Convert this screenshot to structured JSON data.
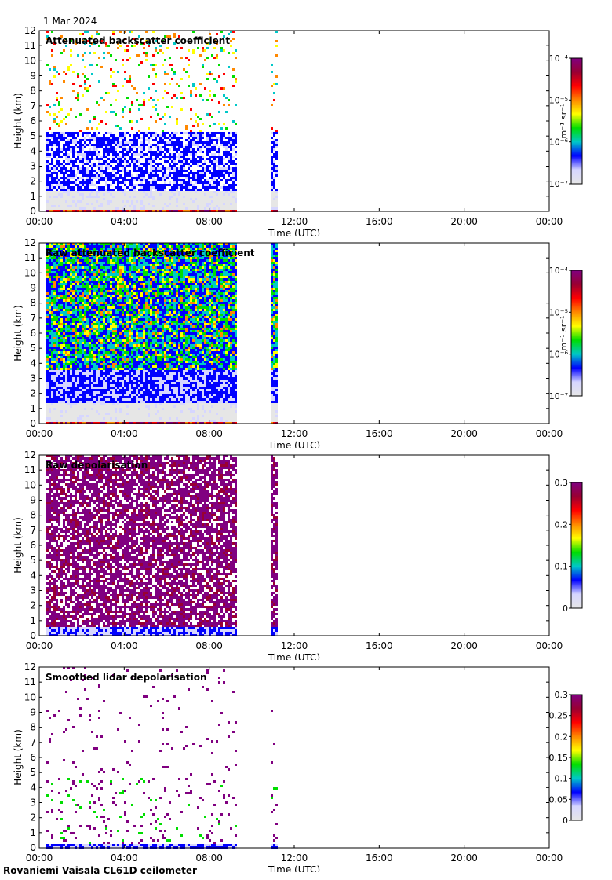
{
  "date_label": "1 Mar 2024",
  "footer_label": "Rovaniemi Vaisala CL61D ceilometer",
  "chart_data": [
    {
      "type": "heatmap",
      "title": "Attenuated backscatter coefficient",
      "xlabel": "Time (UTC)",
      "ylabel": "Height (km)",
      "x_ticks": [
        "00:00",
        "04:00",
        "08:00",
        "12:00",
        "16:00",
        "20:00",
        "00:00"
      ],
      "x_range_hours": [
        0,
        24
      ],
      "ylim": [
        0,
        12
      ],
      "y_ticks": [
        0,
        1,
        2,
        3,
        4,
        5,
        6,
        7,
        8,
        9,
        10,
        11,
        12
      ],
      "colorbar": {
        "scale": "log",
        "unit_label": "m⁻¹ sr⁻¹",
        "ticks": [
          "10⁻⁷",
          "10⁻⁶",
          "10⁻⁵",
          "10⁻⁴"
        ]
      },
      "data_periods_hours": [
        [
          0.35,
          9.3
        ],
        [
          10.9,
          11.2
        ]
      ],
      "colormap": [
        "#e6e6e6",
        "#d6d6ff",
        "#0000ff",
        "#00c8c8",
        "#00dd00",
        "#ffff00",
        "#ff8800",
        "#ff0000",
        "#990033",
        "#800080"
      ]
    },
    {
      "type": "heatmap",
      "title": "Raw attenuated backscatter coefficient",
      "xlabel": "Time (UTC)",
      "ylabel": "Height (km)",
      "x_ticks": [
        "00:00",
        "04:00",
        "08:00",
        "12:00",
        "16:00",
        "20:00",
        "00:00"
      ],
      "x_range_hours": [
        0,
        24
      ],
      "ylim": [
        0,
        12
      ],
      "y_ticks": [
        0,
        1,
        2,
        3,
        4,
        5,
        6,
        7,
        8,
        9,
        10,
        11,
        12
      ],
      "colorbar": {
        "scale": "log",
        "unit_label": "m⁻¹ sr⁻¹",
        "ticks": [
          "10⁻⁷",
          "10⁻⁶",
          "10⁻⁵",
          "10⁻⁴"
        ]
      },
      "data_periods_hours": [
        [
          0.35,
          9.3
        ],
        [
          10.9,
          11.2
        ]
      ],
      "colormap": [
        "#e6e6e6",
        "#d6d6ff",
        "#0000ff",
        "#00c8c8",
        "#00dd00",
        "#ffff00",
        "#ff8800",
        "#ff0000",
        "#990033",
        "#800080"
      ]
    },
    {
      "type": "heatmap",
      "title": "Raw depolarisation",
      "xlabel": "Time (UTC)",
      "ylabel": "Height (km)",
      "x_ticks": [
        "00:00",
        "04:00",
        "08:00",
        "12:00",
        "16:00",
        "20:00",
        "00:00"
      ],
      "x_range_hours": [
        0,
        24
      ],
      "ylim": [
        0,
        12
      ],
      "y_ticks": [
        0,
        1,
        2,
        3,
        4,
        5,
        6,
        7,
        8,
        9,
        10,
        11,
        12
      ],
      "colorbar": {
        "scale": "linear",
        "unit_label": "",
        "ticks": [
          "0",
          "0.1",
          "0.2",
          "0.3"
        ]
      },
      "data_periods_hours": [
        [
          0.35,
          9.3
        ],
        [
          10.9,
          11.2
        ]
      ],
      "colormap": [
        "#e6e6e6",
        "#d6d6ff",
        "#0000ff",
        "#00c8c8",
        "#00dd00",
        "#ffff00",
        "#ff8800",
        "#ff0000",
        "#990033",
        "#800080"
      ]
    },
    {
      "type": "heatmap",
      "title": "Smoothed lidar depolarisation",
      "xlabel": "Time (UTC)",
      "ylabel": "Height (km)",
      "x_ticks": [
        "00:00",
        "04:00",
        "08:00",
        "12:00",
        "16:00",
        "20:00",
        "00:00"
      ],
      "x_range_hours": [
        0,
        24
      ],
      "ylim": [
        0,
        12
      ],
      "y_ticks": [
        0,
        1,
        2,
        3,
        4,
        5,
        6,
        7,
        8,
        9,
        10,
        11,
        12
      ],
      "colorbar": {
        "scale": "linear",
        "unit_label": "",
        "ticks": [
          "0",
          "0.05",
          "0.1",
          "0.15",
          "0.2",
          "0.25",
          "0.3"
        ]
      },
      "data_periods_hours": [
        [
          0.35,
          9.3
        ],
        [
          10.9,
          11.2
        ]
      ],
      "colormap": [
        "#e6e6e6",
        "#d6d6ff",
        "#0000ff",
        "#00c8c8",
        "#00dd00",
        "#ffff00",
        "#ff8800",
        "#ff0000",
        "#990033",
        "#800080"
      ]
    }
  ]
}
